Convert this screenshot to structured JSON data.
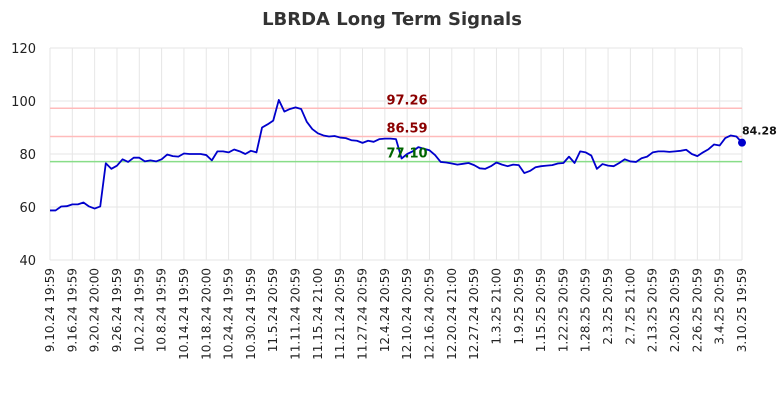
{
  "chart_data": {
    "type": "line",
    "title": "LBRDA Long Term Signals",
    "xlabel": "",
    "ylabel": "",
    "ylim": [
      40,
      120
    ],
    "yticks": [
      40,
      60,
      80,
      100,
      120
    ],
    "grid": true,
    "xtick_labels": [
      "9.10.24 19:59",
      "9.16.24 19:59",
      "9.20.24 20:00",
      "9.26.24 19:59",
      "10.2.24 19:59",
      "10.8.24 19:59",
      "10.14.24 19:59",
      "10.18.24 20:00",
      "10.24.24 19:59",
      "10.30.24 19:59",
      "11.5.24 20:59",
      "11.11.24 20:59",
      "11.15.24 21:00",
      "11.21.24 20:59",
      "11.27.24 20:59",
      "12.4.24 20:59",
      "12.10.24 20:59",
      "12.16.24 20:59",
      "12.20.24 21:00",
      "12.27.24 20:59",
      "1.3.25 21:00",
      "1.9.25 20:59",
      "1.15.25 20:59",
      "1.22.25 20:59",
      "1.28.25 20:59",
      "2.3.25 20:59",
      "2.7.25 21:00",
      "2.13.25 20:59",
      "2.20.25 20:59",
      "2.26.25 20:59",
      "3.4.25 20:59",
      "3.10.25 19:59"
    ],
    "series": [
      {
        "color": "#0000cc",
        "values": [
          58.7,
          58.7,
          60.2,
          60.3,
          61.0,
          61.0,
          61.7,
          60.2,
          59.4,
          60.2,
          76.5,
          74.4,
          75.6,
          78.0,
          77.0,
          78.6,
          78.6,
          77.2,
          77.6,
          77.2,
          78.0,
          79.8,
          79.2,
          79.0,
          80.2,
          80.0,
          80.0,
          80.0,
          79.6,
          77.6,
          81.0,
          81.0,
          80.6,
          81.7,
          81.0,
          80.0,
          81.2,
          80.6,
          90.0,
          91.2,
          92.6,
          100.4,
          96.0,
          97.0,
          97.6,
          97.0,
          92.2,
          89.4,
          87.8,
          87.0,
          86.6,
          86.8,
          86.2,
          86.0,
          85.2,
          85.0,
          84.2,
          85.0,
          84.6,
          85.6,
          85.8,
          85.8,
          85.6,
          78.3,
          80.0,
          81.0,
          82.6,
          82.0,
          81.4,
          79.6,
          77.0,
          76.8,
          76.4,
          76.0,
          76.3,
          76.6,
          75.8,
          74.6,
          74.4,
          75.4,
          76.8,
          76.0,
          75.4,
          76.0,
          75.8,
          72.8,
          73.6,
          75.0,
          75.4,
          75.6,
          75.8,
          76.4,
          76.6,
          79.0,
          76.6,
          81.0,
          80.6,
          79.4,
          74.4,
          76.2,
          75.6,
          75.4,
          76.6,
          78.0,
          77.2,
          77.0,
          78.4,
          79.0,
          80.6,
          81.0,
          81.0,
          80.8,
          81.0,
          81.2,
          81.6,
          80.0,
          79.2,
          80.6,
          81.8,
          83.6,
          83.2,
          86.0,
          87.0,
          86.6,
          84.28
        ]
      }
    ],
    "last_point_label": "84.28",
    "hlines": [
      {
        "value": 97.26,
        "label": "97.26",
        "line_color": "#ffbbbb",
        "label_color": "#8b0000"
      },
      {
        "value": 86.59,
        "label": "86.59",
        "line_color": "#ffbbbb",
        "label_color": "#8b0000"
      },
      {
        "value": 77.1,
        "label": "77.10",
        "line_color": "#88dd88",
        "label_color": "#006400"
      }
    ]
  }
}
